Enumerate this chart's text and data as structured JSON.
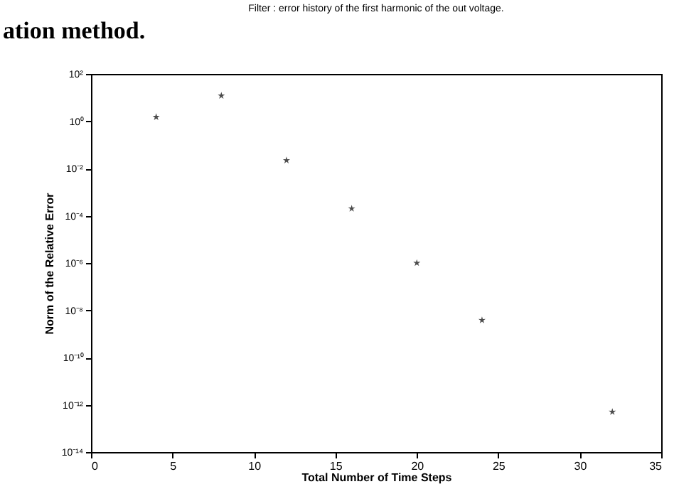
{
  "chart_data": {
    "type": "scatter",
    "title": "Filter : error history of the first harmonic of the out voltage.",
    "xlabel": "Total Number of Time Steps",
    "ylabel": "Norm of the Relative Error",
    "annotations": [
      "ation method."
    ],
    "x": [
      4,
      8,
      12,
      16,
      20,
      24,
      32
    ],
    "series": [
      {
        "color": "#000000",
        "values": [
          1.5,
          12,
          0.022,
          0.0002,
          1e-06,
          3.8e-09,
          5e-13
        ]
      }
    ],
    "xlim": [
      0,
      35
    ],
    "xticks": [
      0,
      5,
      10,
      15,
      20,
      25,
      30,
      35
    ],
    "ylim": [
      1e-14,
      100
    ],
    "yticks": [
      {
        "value": 100,
        "label": "10²"
      },
      {
        "value": 1,
        "label": "10⁰"
      },
      {
        "value": 0.01,
        "label": "10⁻²"
      },
      {
        "value": 0.0001,
        "label": "10⁻⁴"
      },
      {
        "value": 1e-06,
        "label": "10⁻⁶"
      },
      {
        "value": 1e-08,
        "label": "10⁻⁸"
      },
      {
        "value": 1e-10,
        "label": "10⁻¹⁰"
      },
      {
        "value": 1e-12,
        "label": "10⁻¹²"
      },
      {
        "value": 1e-14,
        "label": "10⁻¹⁴"
      }
    ],
    "log": "y",
    "grid": false,
    "marker": "star"
  }
}
